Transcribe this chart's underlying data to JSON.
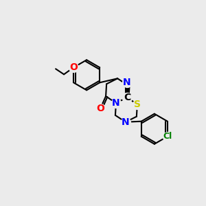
{
  "bg_color": "#ebebeb",
  "bond_color": "#000000",
  "bond_width": 1.5,
  "atom_colors": {
    "C": "#000000",
    "N": "#0000ff",
    "O": "#ff0000",
    "S": "#cccc00",
    "Cl": "#008000"
  },
  "font_size": 9,
  "fig_size": [
    3.0,
    3.0
  ],
  "dpi": 100
}
